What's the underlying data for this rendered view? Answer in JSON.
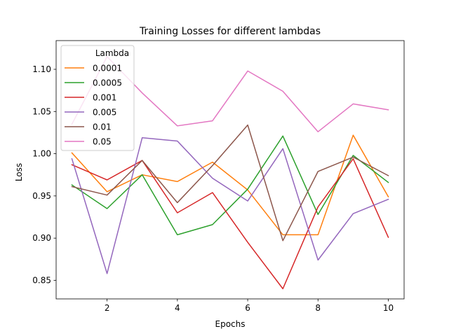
{
  "chart_data": {
    "type": "line",
    "title": "Training Losses for different lambdas",
    "xlabel": "Epochs",
    "ylabel": "Loss",
    "xlim": [
      0.55,
      10.45
    ],
    "ylim": [
      0.828,
      1.134
    ],
    "x": [
      1,
      2,
      3,
      4,
      5,
      6,
      7,
      8,
      9,
      10
    ],
    "xticks": [
      2,
      4,
      6,
      8,
      10
    ],
    "yticks": [
      0.85,
      0.9,
      0.95,
      1.0,
      1.05,
      1.1
    ],
    "ytick_labels": [
      "0.85",
      "0.90",
      "0.95",
      "1.00",
      "1.05",
      "1.10"
    ],
    "legend": {
      "title": "Lambda",
      "position": "top-left"
    },
    "series": [
      {
        "name": "0.0001",
        "color": "#ff7f0e",
        "values": [
          1.001,
          0.955,
          0.975,
          0.967,
          0.99,
          0.957,
          0.904,
          0.904,
          1.022,
          0.949
        ]
      },
      {
        "name": "0.0005",
        "color": "#2ca02c",
        "values": [
          0.963,
          0.935,
          0.975,
          0.904,
          0.916,
          0.958,
          1.021,
          0.928,
          0.998,
          0.966
        ]
      },
      {
        "name": "0.001",
        "color": "#d62728",
        "values": [
          0.987,
          0.969,
          0.992,
          0.93,
          0.954,
          0.895,
          0.84,
          0.937,
          0.994,
          0.901
        ]
      },
      {
        "name": "0.005",
        "color": "#9467bd",
        "values": [
          0.994,
          0.858,
          1.019,
          1.015,
          0.971,
          0.944,
          1.006,
          0.874,
          0.929,
          0.946
        ]
      },
      {
        "name": "0.01",
        "color": "#8c564b",
        "values": [
          0.961,
          0.951,
          0.992,
          0.942,
          0.986,
          1.034,
          0.897,
          0.979,
          0.996,
          0.974
        ]
      },
      {
        "name": "0.05",
        "color": "#e377c2",
        "values": [
          1.035,
          1.115,
          1.072,
          1.033,
          1.039,
          1.098,
          1.074,
          1.026,
          1.059,
          1.052
        ]
      }
    ]
  }
}
